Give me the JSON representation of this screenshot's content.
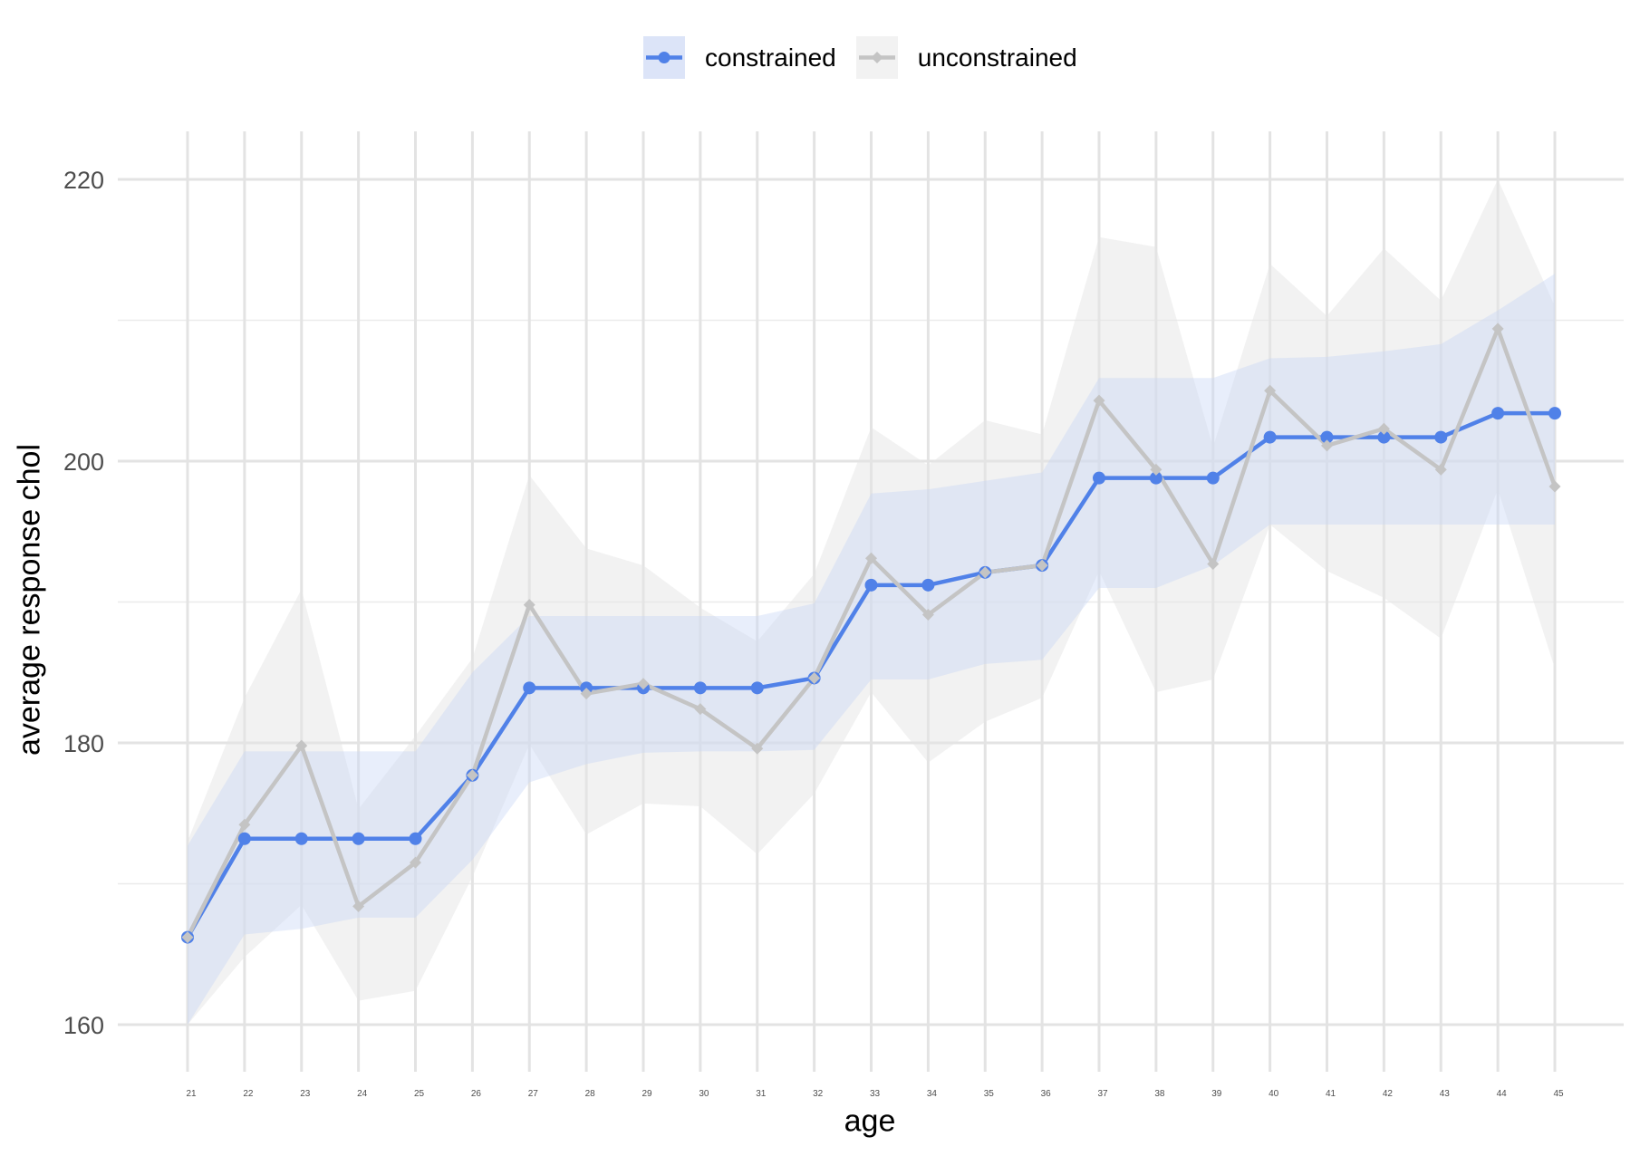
{
  "legend": {
    "items": [
      {
        "label": "constrained",
        "icon": "line-circle-marker",
        "line_color": "#5081E8",
        "fill_color": "#DCE4F8"
      },
      {
        "label": "unconstrained",
        "icon": "line-diamond-marker",
        "line_color": "#C4C4C4",
        "fill_color": "#F2F2F2"
      }
    ]
  },
  "axes": {
    "x_title": "age",
    "y_title": "average response chol"
  },
  "chart_data": {
    "type": "line",
    "title": "",
    "xlabel": "age",
    "ylabel": "average response chol",
    "x": [
      21,
      22,
      23,
      24,
      25,
      26,
      27,
      28,
      29,
      30,
      31,
      32,
      33,
      34,
      35,
      36,
      37,
      38,
      39,
      40,
      41,
      42,
      43,
      44,
      45
    ],
    "yticks": [
      160,
      180,
      200,
      220
    ],
    "yminor": [
      170,
      190,
      210
    ],
    "ylim": [
      156.5,
      223.5
    ],
    "grid": true,
    "legend_position": "top",
    "series": [
      {
        "name": "constrained",
        "color": "#5081E8",
        "band_color": "#C9D6F5",
        "marker": "circle",
        "values": [
          166.2,
          173.2,
          173.2,
          173.2,
          173.2,
          177.7,
          183.9,
          183.9,
          183.9,
          183.9,
          183.9,
          184.6,
          191.2,
          191.2,
          192.1,
          192.6,
          198.8,
          198.8,
          198.8,
          201.7,
          201.7,
          201.7,
          201.7,
          203.4,
          203.4
        ],
        "lower": [
          160.0,
          166.4,
          166.8,
          167.6,
          167.6,
          171.7,
          177.2,
          178.5,
          179.3,
          179.4,
          179.4,
          179.5,
          184.5,
          184.5,
          185.6,
          185.9,
          191.0,
          191.0,
          192.6,
          195.5,
          195.5,
          195.5,
          195.5,
          195.5,
          195.5
        ],
        "upper": [
          172.7,
          179.4,
          179.4,
          179.4,
          179.4,
          185.0,
          189.0,
          189.0,
          189.0,
          189.0,
          189.0,
          189.9,
          197.7,
          198.0,
          198.6,
          199.2,
          205.9,
          205.9,
          205.9,
          207.3,
          207.4,
          207.8,
          208.3,
          210.7,
          213.3
        ]
      },
      {
        "name": "unconstrained",
        "color": "#C4C4C4",
        "band_color": "#E6E6E6",
        "marker": "diamond",
        "values": [
          166.2,
          174.2,
          179.8,
          168.4,
          171.5,
          177.7,
          189.8,
          183.5,
          184.2,
          182.4,
          179.6,
          184.6,
          193.1,
          189.1,
          192.1,
          192.6,
          204.3,
          199.4,
          192.7,
          205.0,
          201.1,
          202.3,
          199.4,
          209.4,
          198.2
        ],
        "lower": [
          160.0,
          164.8,
          168.5,
          161.7,
          162.4,
          170.5,
          179.9,
          173.5,
          175.7,
          175.5,
          172.1,
          176.4,
          183.6,
          178.6,
          181.5,
          183.2,
          192.2,
          183.6,
          184.5,
          195.5,
          192.2,
          190.3,
          187.4,
          198.0,
          185.3
        ],
        "upper": [
          173.0,
          183.2,
          190.9,
          175.3,
          180.5,
          186.0,
          199.0,
          193.8,
          192.6,
          189.6,
          187.2,
          192.0,
          202.4,
          199.7,
          202.9,
          201.9,
          215.9,
          215.2,
          201.0,
          214.0,
          210.3,
          215.1,
          211.4,
          220.0,
          211.0
        ]
      }
    ]
  }
}
